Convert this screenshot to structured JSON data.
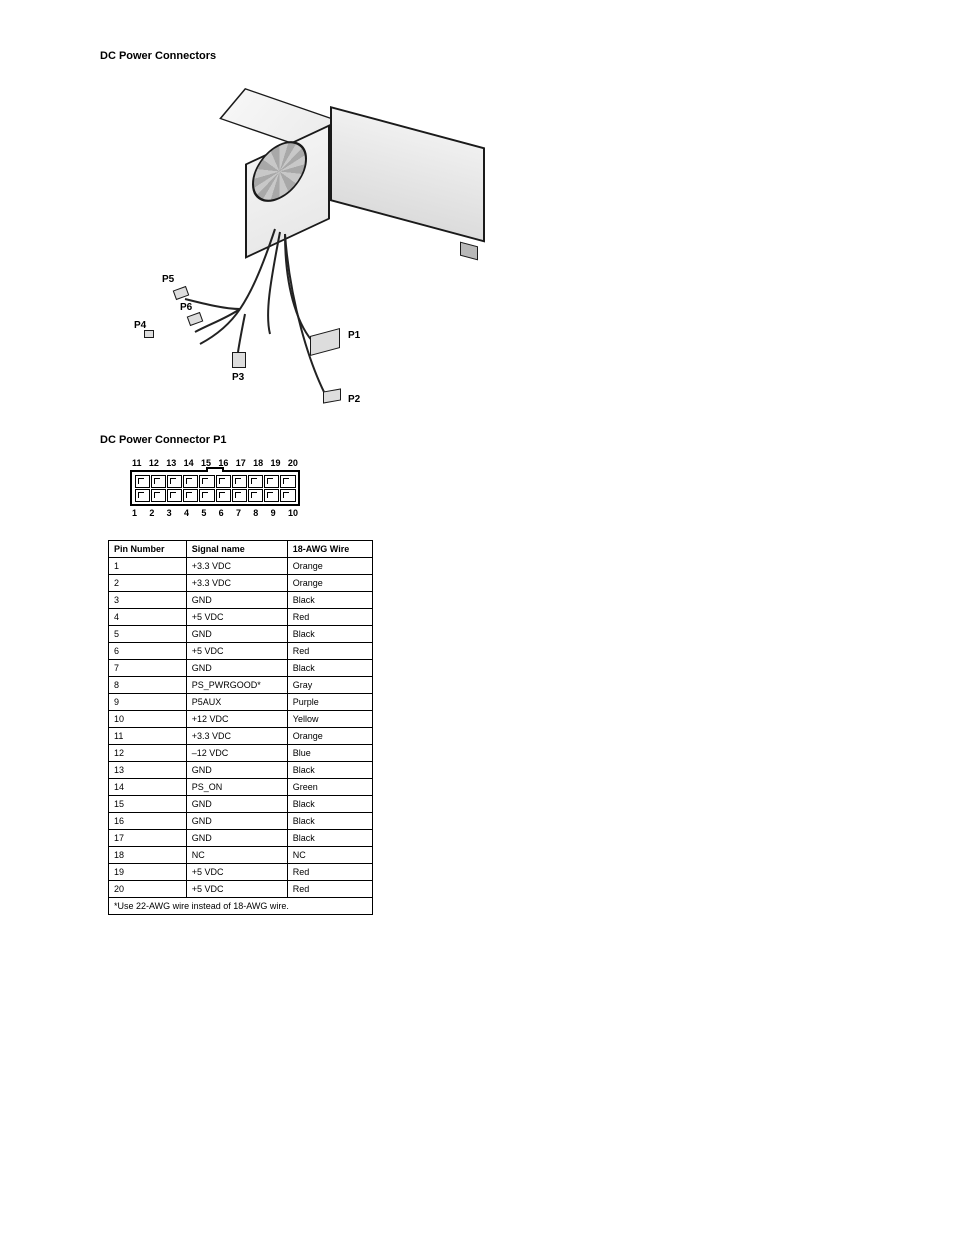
{
  "titles": {
    "connectors_fig": "DC Power Connectors",
    "p1_fig": "DC Power Connector P1"
  },
  "psu_labels": {
    "p1": "P1",
    "p2": "P2",
    "p3": "P3",
    "p4": "P4",
    "p5": "P5",
    "p6": "P6"
  },
  "pinout": {
    "top_row": [
      "11",
      "12",
      "13",
      "14",
      "15",
      "16",
      "17",
      "18",
      "19",
      "20"
    ],
    "bottom_row": [
      "1",
      "2",
      "3",
      "4",
      "5",
      "6",
      "7",
      "8",
      "9",
      "10"
    ]
  },
  "table": {
    "headers": [
      "Pin Number",
      "Signal name",
      "18-AWG Wire"
    ],
    "rows": [
      [
        "1",
        "+3.3 VDC",
        "Orange"
      ],
      [
        "2",
        "+3.3 VDC",
        "Orange"
      ],
      [
        "3",
        "GND",
        "Black"
      ],
      [
        "4",
        "+5 VDC",
        "Red"
      ],
      [
        "5",
        "GND",
        "Black"
      ],
      [
        "6",
        "+5 VDC",
        "Red"
      ],
      [
        "7",
        "GND",
        "Black"
      ],
      [
        "8",
        "PS_PWRGOOD*",
        "Gray"
      ],
      [
        "9",
        "P5AUX",
        "Purple"
      ],
      [
        "10",
        "+12 VDC",
        "Yellow"
      ],
      [
        "11",
        "+3.3 VDC",
        "Orange"
      ],
      [
        "12",
        "–12 VDC",
        "Blue"
      ],
      [
        "13",
        "GND",
        "Black"
      ],
      [
        "14",
        "PS_ON",
        "Green"
      ],
      [
        "15",
        "GND",
        "Black"
      ],
      [
        "16",
        "GND",
        "Black"
      ],
      [
        "17",
        "GND",
        "Black"
      ],
      [
        "18",
        "NC",
        "NC"
      ],
      [
        "19",
        "+5 VDC",
        "Red"
      ],
      [
        "20",
        "+5 VDC",
        "Red"
      ]
    ],
    "footnote": "*Use 22-AWG wire instead of 18-AWG wire."
  },
  "style": {
    "border_color": "#000000",
    "text_color": "#000000",
    "background": "#ffffff",
    "label_fontsize": 10,
    "table_fontsize": 9,
    "title_fontsize": 11
  }
}
